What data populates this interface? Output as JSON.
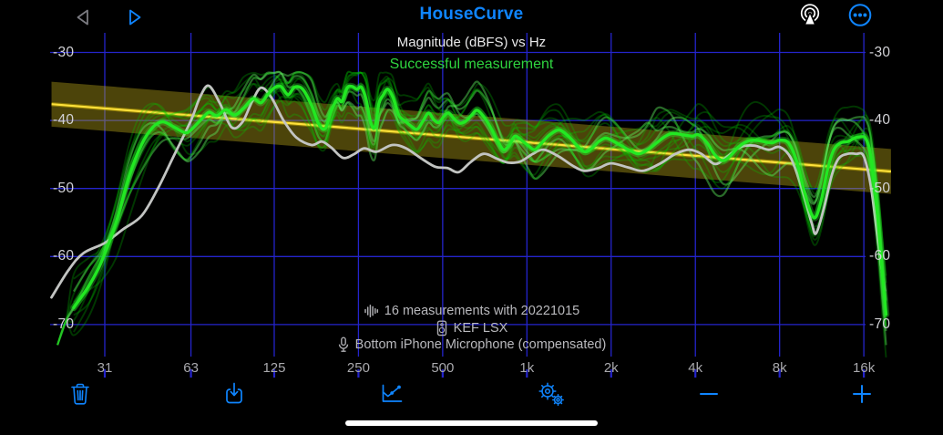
{
  "app": {
    "title": "HouseCurve"
  },
  "nav": {
    "back_icon": "back-chevron-icon",
    "play_icon": "play-icon",
    "airplay_icon": "airplay-audio-icon",
    "more_icon": "ellipsis-circle-icon"
  },
  "chart": {
    "title": "Magnitude (dBFS) vs Hz",
    "status": "Successful measurement",
    "status_color": "#2fd53f",
    "annotations": [
      {
        "icon": "waveform-icon",
        "text": "16 measurements with 20221015"
      },
      {
        "icon": "speaker-icon",
        "text": "KEF LSX"
      },
      {
        "icon": "microphone-icon",
        "text": "Bottom iPhone Microphone (compensated)"
      }
    ]
  },
  "chart_data": {
    "type": "line",
    "title": "Magnitude (dBFS) vs Hz",
    "x_axis": {
      "scale": "log",
      "unit": "Hz",
      "ticks": [
        {
          "f": 31,
          "label": "31"
        },
        {
          "f": 63,
          "label": "63"
        },
        {
          "f": 125,
          "label": "125"
        },
        {
          "f": 250,
          "label": "250"
        },
        {
          "f": 500,
          "label": "500"
        },
        {
          "f": 1000,
          "label": "1k"
        },
        {
          "f": 2000,
          "label": "2k"
        },
        {
          "f": 4000,
          "label": "4k"
        },
        {
          "f": 8000,
          "label": "8k"
        },
        {
          "f": 16000,
          "label": "16k"
        }
      ]
    },
    "y_axis": {
      "unit": "dBFS",
      "ticks": [
        {
          "db": -30,
          "label": "-30"
        },
        {
          "db": -40,
          "label": "-40"
        },
        {
          "db": -50,
          "label": "-50"
        },
        {
          "db": -60,
          "label": "-60"
        },
        {
          "db": -70,
          "label": "-70"
        }
      ],
      "range": [
        -72,
        -28
      ]
    },
    "grid_color": "#2424cc",
    "measurement_count": 16,
    "faint_variant_count": 14,
    "target": {
      "f_start": 20,
      "f_end": 20000,
      "db_start": -37.6,
      "db_end": -47.5,
      "tolerance_db": 3.3,
      "color": "#ffe13a",
      "band_color": "rgba(190,170,25,0.40)"
    },
    "series": [
      {
        "name": "measurement-average",
        "color": "#22e822",
        "points": [
          [
            24,
            -67.5
          ],
          [
            27,
            -64.5
          ],
          [
            30,
            -61
          ],
          [
            34,
            -55
          ],
          [
            38,
            -48
          ],
          [
            42,
            -43.5
          ],
          [
            46,
            -41
          ],
          [
            50,
            -40.2
          ],
          [
            55,
            -41
          ],
          [
            60,
            -41.8
          ],
          [
            63,
            -41.4
          ],
          [
            68,
            -40
          ],
          [
            73,
            -38.8
          ],
          [
            78,
            -39.3
          ],
          [
            84,
            -38.4
          ],
          [
            90,
            -39.2
          ],
          [
            97,
            -38.2
          ],
          [
            105,
            -36.8
          ],
          [
            112,
            -37.4
          ],
          [
            118,
            -36.3
          ],
          [
            125,
            -35.2
          ],
          [
            132,
            -35
          ],
          [
            140,
            -36.2
          ],
          [
            148,
            -35.1
          ],
          [
            158,
            -35.4
          ],
          [
            170,
            -37.8
          ],
          [
            180,
            -40.5
          ],
          [
            190,
            -41.2
          ],
          [
            200,
            -38.6
          ],
          [
            210,
            -36.8
          ],
          [
            218,
            -37.2
          ],
          [
            228,
            -35.2
          ],
          [
            237,
            -35
          ],
          [
            247,
            -35.4
          ],
          [
            256,
            -35.1
          ],
          [
            266,
            -36.9
          ],
          [
            276,
            -40.2
          ],
          [
            286,
            -41
          ],
          [
            296,
            -37.5
          ],
          [
            306,
            -36.3
          ],
          [
            318,
            -35.4
          ],
          [
            332,
            -36.6
          ],
          [
            348,
            -39.2
          ],
          [
            365,
            -40
          ],
          [
            385,
            -40.8
          ],
          [
            405,
            -41.3
          ],
          [
            425,
            -40.1
          ],
          [
            445,
            -38.9
          ],
          [
            465,
            -39.9
          ],
          [
            485,
            -40.3
          ],
          [
            505,
            -39.4
          ],
          [
            525,
            -38.9
          ],
          [
            550,
            -39.8
          ],
          [
            575,
            -40.4
          ],
          [
            605,
            -40.1
          ],
          [
            635,
            -39.2
          ],
          [
            665,
            -38.5
          ],
          [
            705,
            -39.6
          ],
          [
            745,
            -41.2
          ],
          [
            785,
            -43
          ],
          [
            825,
            -44.3
          ],
          [
            865,
            -43.6
          ],
          [
            905,
            -42.3
          ],
          [
            955,
            -42.9
          ],
          [
            1005,
            -43.6
          ],
          [
            1065,
            -44.3
          ],
          [
            1125,
            -43.4
          ],
          [
            1205,
            -42.1
          ],
          [
            1305,
            -41.4
          ],
          [
            1405,
            -42.3
          ],
          [
            1505,
            -43.6
          ],
          [
            1605,
            -44.6
          ],
          [
            1705,
            -44.1
          ],
          [
            1805,
            -43.1
          ],
          [
            1905,
            -42.6
          ],
          [
            2005,
            -42.9
          ],
          [
            2155,
            -43.6
          ],
          [
            2305,
            -44.3
          ],
          [
            2505,
            -44.9
          ],
          [
            2705,
            -44.3
          ],
          [
            2905,
            -43.3
          ],
          [
            3105,
            -42.4
          ],
          [
            3305,
            -41.9
          ],
          [
            3605,
            -42.1
          ],
          [
            3905,
            -42.3
          ],
          [
            4105,
            -42.1
          ],
          [
            4405,
            -43.3
          ],
          [
            4705,
            -45.1
          ],
          [
            5005,
            -45.9
          ],
          [
            5305,
            -45.3
          ],
          [
            5705,
            -43.9
          ],
          [
            6105,
            -43.1
          ],
          [
            6505,
            -42.9
          ],
          [
            7005,
            -43.1
          ],
          [
            7505,
            -43.3
          ],
          [
            8005,
            -42.9
          ],
          [
            8605,
            -43.3
          ],
          [
            9205,
            -46
          ],
          [
            9805,
            -50.5
          ],
          [
            10405,
            -53.8
          ],
          [
            10805,
            -54.1
          ],
          [
            11305,
            -51.5
          ],
          [
            11905,
            -47
          ],
          [
            12505,
            -44.3
          ],
          [
            13205,
            -43.3
          ],
          [
            14005,
            -43.1
          ],
          [
            14805,
            -42.6
          ],
          [
            15605,
            -42.4
          ],
          [
            16205,
            -42.6
          ],
          [
            16805,
            -44.5
          ],
          [
            17405,
            -49
          ],
          [
            18005,
            -55
          ],
          [
            18605,
            -62
          ],
          [
            19205,
            -68.5
          ]
        ]
      },
      {
        "name": "reference-curve",
        "color": "#c2c4c2",
        "points": [
          [
            20,
            -66
          ],
          [
            23,
            -62
          ],
          [
            26,
            -59.5
          ],
          [
            31,
            -58
          ],
          [
            36,
            -56
          ],
          [
            42,
            -54
          ],
          [
            48,
            -50
          ],
          [
            55,
            -45
          ],
          [
            63,
            -40
          ],
          [
            68,
            -36.5
          ],
          [
            73,
            -34.9
          ],
          [
            80,
            -37.5
          ],
          [
            88,
            -41
          ],
          [
            96,
            -40.3
          ],
          [
            104,
            -37.3
          ],
          [
            112,
            -35.2
          ],
          [
            122,
            -36.6
          ],
          [
            135,
            -40
          ],
          [
            150,
            -42.5
          ],
          [
            170,
            -43.6
          ],
          [
            185,
            -43.1
          ],
          [
            200,
            -44
          ],
          [
            220,
            -45.5
          ],
          [
            240,
            -45
          ],
          [
            262,
            -44.1
          ],
          [
            290,
            -44.6
          ],
          [
            330,
            -43.6
          ],
          [
            370,
            -44.1
          ],
          [
            420,
            -45.6
          ],
          [
            470,
            -46.8
          ],
          [
            520,
            -47
          ],
          [
            570,
            -47.6
          ],
          [
            630,
            -46.1
          ],
          [
            700,
            -44.9
          ],
          [
            780,
            -45.6
          ],
          [
            860,
            -46.2
          ],
          [
            950,
            -46
          ],
          [
            1050,
            -44.9
          ],
          [
            1150,
            -44.3
          ],
          [
            1300,
            -45.3
          ],
          [
            1450,
            -46.6
          ],
          [
            1600,
            -47.4
          ],
          [
            1800,
            -47
          ],
          [
            2000,
            -46.3
          ],
          [
            2300,
            -46.9
          ],
          [
            2600,
            -47.4
          ],
          [
            3000,
            -46.3
          ],
          [
            3400,
            -44.9
          ],
          [
            3800,
            -44.3
          ],
          [
            4200,
            -44.9
          ],
          [
            4700,
            -46.4
          ],
          [
            5200,
            -45.3
          ],
          [
            5800,
            -43.9
          ],
          [
            6500,
            -43.7
          ],
          [
            7300,
            -44.3
          ],
          [
            8000,
            -43.9
          ],
          [
            8800,
            -45.6
          ],
          [
            9600,
            -50
          ],
          [
            10400,
            -55
          ],
          [
            10800,
            -56.6
          ],
          [
            11500,
            -53
          ],
          [
            12300,
            -48
          ],
          [
            13000,
            -45.6
          ],
          [
            14000,
            -44.9
          ],
          [
            15000,
            -44.9
          ],
          [
            16000,
            -45.3
          ],
          [
            17000,
            -50
          ],
          [
            18000,
            -58
          ],
          [
            19000,
            -65
          ]
        ]
      }
    ]
  },
  "toolbar": {
    "buttons": [
      {
        "name": "delete",
        "icon": "trash-icon"
      },
      {
        "name": "import",
        "icon": "import-icon"
      },
      {
        "name": "chart",
        "icon": "chart-line-icon"
      },
      {
        "name": "settings",
        "icon": "gears-icon"
      },
      {
        "name": "zoom-out",
        "icon": "minus-icon"
      },
      {
        "name": "zoom-in",
        "icon": "plus-icon"
      }
    ]
  },
  "colors": {
    "accent": "#0f85ff",
    "background": "#000000",
    "axis_label": "#d2d2d6"
  }
}
